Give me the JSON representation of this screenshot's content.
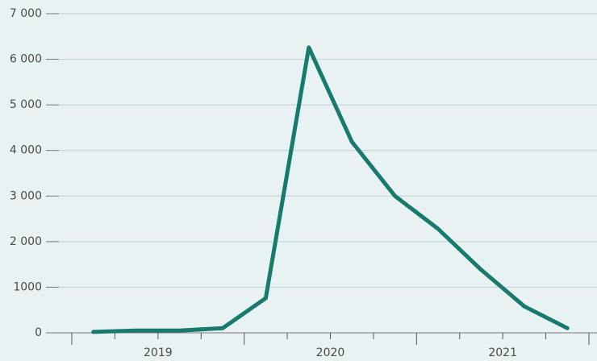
{
  "chart_data": {
    "type": "line",
    "years": [
      "2019",
      "2020",
      "2021"
    ],
    "values": [
      20,
      50,
      50,
      100,
      760,
      6260,
      4190,
      3000,
      2280,
      1380,
      580,
      100
    ],
    "color": "#177a6c",
    "ylim": [
      0,
      7000
    ],
    "yticks": [
      0,
      1000,
      {
        "value": 2000,
        "label": "2 000"
      },
      {
        "value": 3000,
        "label": "3 000"
      },
      {
        "value": 4000,
        "label": "4 000"
      },
      {
        "value": 5000,
        "label": "5 000"
      },
      {
        "value": 6000,
        "label": "6 000"
      },
      {
        "value": 7000,
        "label": "7 000"
      }
    ],
    "grid": true
  }
}
